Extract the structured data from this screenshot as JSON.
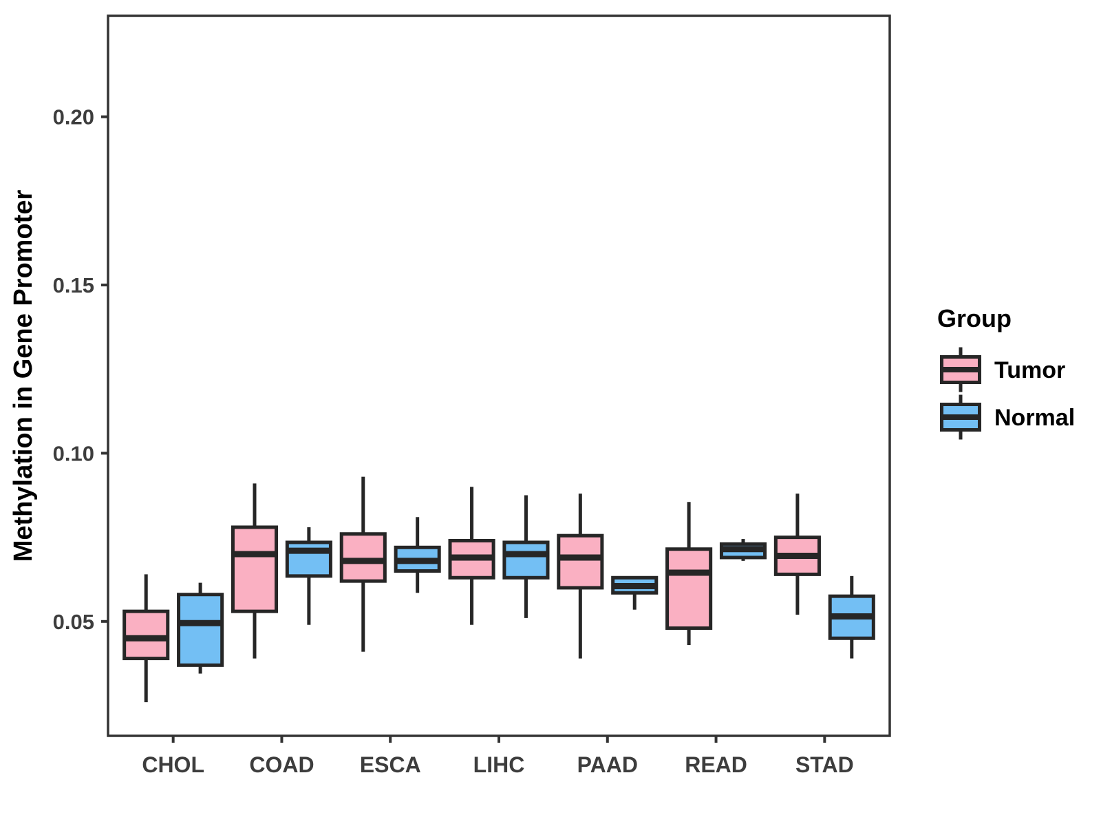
{
  "chart_data": {
    "type": "boxplot",
    "title": "",
    "ylabel": "Methylation in Gene Promoter",
    "xlabel": "",
    "legend_title": "Group",
    "legend_position": "right",
    "grid": false,
    "ylim": [
      0.016,
      0.23
    ],
    "yticks": [
      0.05,
      0.1,
      0.15,
      0.2
    ],
    "ytick_labels": [
      "0.05",
      "0.10",
      "0.15",
      "0.20"
    ],
    "categories": [
      "CHOL",
      "COAD",
      "ESCA",
      "LIHC",
      "PAAD",
      "READ",
      "STAD"
    ],
    "colors": {
      "panel_border": "#333333",
      "axis_line": "#333333",
      "axis_text": "#3D3D3D",
      "box_stroke": "#262626",
      "background": "#FFFFFF"
    },
    "series": [
      {
        "name": "Tumor",
        "color": "#FAB0C2",
        "boxes": [
          {
            "category": "CHOL",
            "low": 0.026,
            "q1": 0.039,
            "median": 0.045,
            "q3": 0.053,
            "high": 0.064
          },
          {
            "category": "COAD",
            "low": 0.039,
            "q1": 0.053,
            "median": 0.07,
            "q3": 0.078,
            "high": 0.091
          },
          {
            "category": "ESCA",
            "low": 0.041,
            "q1": 0.062,
            "median": 0.068,
            "q3": 0.076,
            "high": 0.093
          },
          {
            "category": "LIHC",
            "low": 0.049,
            "q1": 0.063,
            "median": 0.069,
            "q3": 0.074,
            "high": 0.09
          },
          {
            "category": "PAAD",
            "low": 0.039,
            "q1": 0.06,
            "median": 0.069,
            "q3": 0.0755,
            "high": 0.088
          },
          {
            "category": "READ",
            "low": 0.043,
            "q1": 0.048,
            "median": 0.0645,
            "q3": 0.0715,
            "high": 0.0855
          },
          {
            "category": "STAD",
            "low": 0.052,
            "q1": 0.064,
            "median": 0.0695,
            "q3": 0.075,
            "high": 0.088
          }
        ]
      },
      {
        "name": "Normal",
        "color": "#73BFF4",
        "boxes": [
          {
            "category": "CHOL",
            "low": 0.0345,
            "q1": 0.037,
            "median": 0.0495,
            "q3": 0.058,
            "high": 0.0615
          },
          {
            "category": "COAD",
            "low": 0.049,
            "q1": 0.0635,
            "median": 0.071,
            "q3": 0.0735,
            "high": 0.078
          },
          {
            "category": "ESCA",
            "low": 0.0585,
            "q1": 0.065,
            "median": 0.068,
            "q3": 0.072,
            "high": 0.081
          },
          {
            "category": "LIHC",
            "low": 0.051,
            "q1": 0.063,
            "median": 0.07,
            "q3": 0.0735,
            "high": 0.0875
          },
          {
            "category": "PAAD",
            "low": 0.0535,
            "q1": 0.0585,
            "median": 0.0605,
            "q3": 0.063,
            "high": 0.063
          },
          {
            "category": "READ",
            "low": 0.068,
            "q1": 0.069,
            "median": 0.0715,
            "q3": 0.073,
            "high": 0.0745
          },
          {
            "category": "STAD",
            "low": 0.039,
            "q1": 0.045,
            "median": 0.0515,
            "q3": 0.0575,
            "high": 0.0635
          }
        ]
      }
    ]
  }
}
